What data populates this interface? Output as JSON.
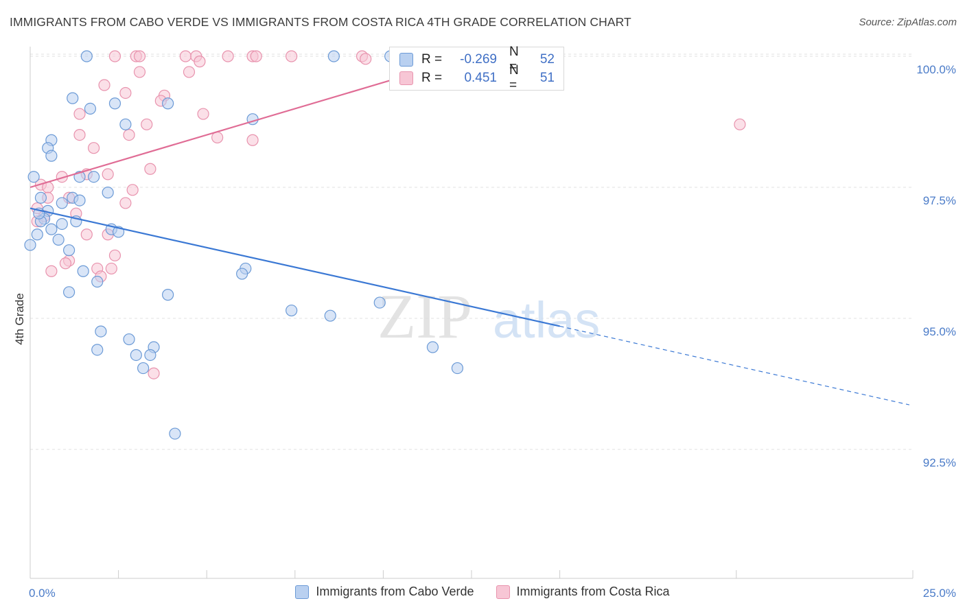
{
  "title": "IMMIGRANTS FROM CABO VERDE VS IMMIGRANTS FROM COSTA RICA 4TH GRADE CORRELATION CHART",
  "source": "Source: ZipAtlas.com",
  "watermark": {
    "zip": "ZIP",
    "atlas": "atlas"
  },
  "colors": {
    "blue_fill": "#b9d0f0",
    "blue_stroke": "#6b9ad6",
    "blue_line": "#3a78d4",
    "pink_fill": "#f7c6d5",
    "pink_stroke": "#e892ad",
    "pink_line": "#e06c95",
    "grid": "#e2e2e2",
    "tick_text": "#4a7bc8"
  },
  "legend_top": {
    "rows": [
      {
        "r_key": "R =",
        "r_val": "-0.269",
        "n_key": "N =",
        "n_val": "52",
        "color": "blue"
      },
      {
        "r_key": "R =",
        "r_val": "0.451",
        "n_key": "N =",
        "n_val": "51",
        "color": "pink"
      }
    ]
  },
  "legend_bottom": [
    {
      "label": "Immigrants from Cabo Verde",
      "color": "blue"
    },
    {
      "label": "Immigrants from Costa Rica",
      "color": "pink"
    }
  ],
  "chart_data": {
    "type": "scatter",
    "title": "IMMIGRANTS FROM CABO VERDE VS IMMIGRANTS FROM COSTA RICA 4TH GRADE CORRELATION CHART",
    "xlabel": "",
    "ylabel": "4th Grade",
    "xlim": [
      0,
      25
    ],
    "ylim": [
      90.5,
      100.5
    ],
    "x_tick_labels": [
      {
        "value": 0,
        "label": "0.0%"
      },
      {
        "value": 25,
        "label": "25.0%"
      }
    ],
    "x_minor_ticks": [
      2.5,
      5,
      7.5,
      10,
      12.5,
      15,
      20,
      25
    ],
    "y_ticks": [
      {
        "value": 100,
        "label": "100.0%"
      },
      {
        "value": 97.5,
        "label": "97.5%"
      },
      {
        "value": 95,
        "label": "95.0%"
      },
      {
        "value": 92.5,
        "label": "92.5%"
      }
    ],
    "grid": true,
    "series": [
      {
        "name": "Immigrants from Cabo Verde",
        "color": "blue",
        "r": -0.269,
        "n": 52,
        "trend": {
          "x1": 0,
          "y1": 97.1,
          "x2": 15,
          "y2": 94.85,
          "dash_x2": 24.9,
          "dash_y2": 93.35
        },
        "points": [
          [
            1.6,
            100
          ],
          [
            8.6,
            100
          ],
          [
            10.2,
            100
          ],
          [
            1.2,
            99.2
          ],
          [
            1.7,
            99
          ],
          [
            2.4,
            99.1
          ],
          [
            3.9,
            99.1
          ],
          [
            2.7,
            98.7
          ],
          [
            6.3,
            98.8
          ],
          [
            0.6,
            98.4
          ],
          [
            0.5,
            98.25
          ],
          [
            0.6,
            98.1
          ],
          [
            0.1,
            97.7
          ],
          [
            1.4,
            97.7
          ],
          [
            1.8,
            97.7
          ],
          [
            2.2,
            97.4
          ],
          [
            0.3,
            97.3
          ],
          [
            1.2,
            97.3
          ],
          [
            1.4,
            97.25
          ],
          [
            0.9,
            97.2
          ],
          [
            0.5,
            97.05
          ],
          [
            0.4,
            96.9
          ],
          [
            0.3,
            96.85
          ],
          [
            0.9,
            96.8
          ],
          [
            1.3,
            96.85
          ],
          [
            2.3,
            96.7
          ],
          [
            2.5,
            96.65
          ],
          [
            0.6,
            96.7
          ],
          [
            0.2,
            96.6
          ],
          [
            0.8,
            96.5
          ],
          [
            0,
            96.4
          ],
          [
            1.1,
            96.3
          ],
          [
            1.5,
            95.9
          ],
          [
            6.1,
            95.95
          ],
          [
            6.0,
            95.85
          ],
          [
            1.9,
            95.7
          ],
          [
            1.1,
            95.5
          ],
          [
            3.9,
            95.45
          ],
          [
            9.9,
            95.3
          ],
          [
            7.4,
            95.15
          ],
          [
            8.5,
            95.05
          ],
          [
            2.0,
            94.75
          ],
          [
            2.8,
            94.6
          ],
          [
            3.5,
            94.45
          ],
          [
            1.9,
            94.4
          ],
          [
            3.0,
            94.3
          ],
          [
            3.4,
            94.3
          ],
          [
            11.4,
            94.45
          ],
          [
            3.2,
            94.05
          ],
          [
            12.1,
            94.05
          ],
          [
            4.1,
            92.8
          ],
          [
            0.25,
            97.0
          ]
        ]
      },
      {
        "name": "Immigrants from Costa Rica",
        "color": "pink",
        "r": 0.451,
        "n": 51,
        "trend": {
          "x1": 0,
          "y1": 97.5,
          "x2": 12.5,
          "y2": 100
        },
        "points": [
          [
            2.4,
            100
          ],
          [
            3.0,
            100
          ],
          [
            3.1,
            100
          ],
          [
            4.4,
            100
          ],
          [
            4.7,
            100
          ],
          [
            5.6,
            100
          ],
          [
            6.3,
            100
          ],
          [
            6.4,
            100
          ],
          [
            7.4,
            100
          ],
          [
            9.4,
            100
          ],
          [
            9.5,
            99.95
          ],
          [
            4.8,
            99.9
          ],
          [
            3.1,
            99.7
          ],
          [
            4.5,
            99.7
          ],
          [
            2.1,
            99.45
          ],
          [
            2.7,
            99.3
          ],
          [
            3.8,
            99.25
          ],
          [
            3.7,
            99.15
          ],
          [
            1.4,
            98.9
          ],
          [
            4.9,
            98.9
          ],
          [
            3.3,
            98.7
          ],
          [
            20.1,
            98.7
          ],
          [
            1.4,
            98.5
          ],
          [
            2.8,
            98.5
          ],
          [
            5.3,
            98.45
          ],
          [
            6.3,
            98.4
          ],
          [
            1.8,
            98.25
          ],
          [
            3.4,
            97.85
          ],
          [
            1.6,
            97.75
          ],
          [
            2.2,
            97.75
          ],
          [
            0.9,
            97.7
          ],
          [
            0.3,
            97.55
          ],
          [
            0.5,
            97.5
          ],
          [
            2.9,
            97.45
          ],
          [
            0.5,
            97.3
          ],
          [
            1.1,
            97.3
          ],
          [
            2.7,
            97.2
          ],
          [
            1.3,
            97.0
          ],
          [
            0.2,
            97.1
          ],
          [
            0.2,
            96.85
          ],
          [
            2.2,
            96.6
          ],
          [
            2.4,
            96.2
          ],
          [
            1.1,
            96.1
          ],
          [
            1.0,
            96.05
          ],
          [
            1.9,
            95.95
          ],
          [
            2.3,
            95.95
          ],
          [
            0.6,
            95.9
          ],
          [
            2.0,
            95.8
          ],
          [
            1.6,
            96.6
          ],
          [
            3.5,
            93.95
          ],
          [
            0.4,
            96.95
          ]
        ]
      }
    ]
  }
}
